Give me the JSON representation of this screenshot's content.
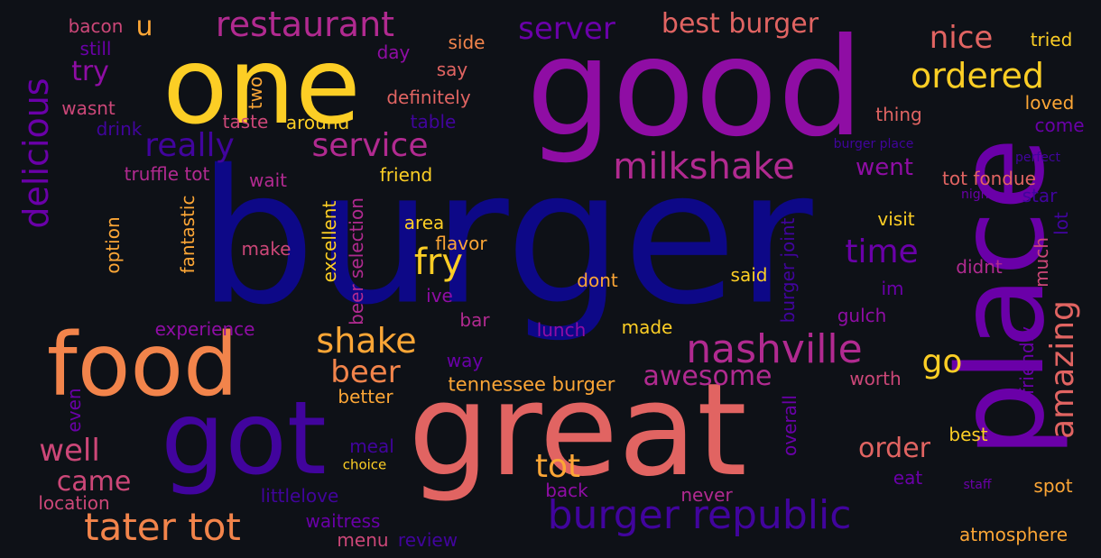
{
  "colors": {
    "background": "#0e1117",
    "navy": "#0d0887",
    "indigo": "#41049d",
    "violet": "#6a00a8",
    "purple": "#8f0da4",
    "magenta": "#b12a90",
    "pink": "#cc4778",
    "salmon": "#e16462",
    "orange": "#f2844b",
    "amber": "#fca636",
    "yellow": "#fcce25"
  },
  "words": [
    {
      "text": "burger",
      "color": "navy"
    },
    {
      "text": "good",
      "color": "purple"
    },
    {
      "text": "place",
      "color": "violet"
    },
    {
      "text": "great",
      "color": "salmon"
    },
    {
      "text": "one",
      "color": "yellow"
    },
    {
      "text": "food",
      "color": "orange"
    },
    {
      "text": "got",
      "color": "indigo"
    },
    {
      "text": "burger republic",
      "color": "indigo"
    },
    {
      "text": "nashville",
      "color": "magenta"
    },
    {
      "text": "tater tot",
      "color": "orange"
    },
    {
      "text": "milkshake",
      "color": "magenta"
    },
    {
      "text": "delicious",
      "color": "violet"
    },
    {
      "text": "restaurant",
      "color": "magenta"
    },
    {
      "text": "service",
      "color": "magenta"
    },
    {
      "text": "really",
      "color": "indigo"
    },
    {
      "text": "amazing",
      "color": "salmon"
    },
    {
      "text": "ordered",
      "color": "yellow"
    },
    {
      "text": "shake",
      "color": "amber"
    },
    {
      "text": "best burger",
      "color": "salmon"
    },
    {
      "text": "server",
      "color": "violet"
    },
    {
      "text": "nice",
      "color": "salmon"
    },
    {
      "text": "time",
      "color": "violet"
    },
    {
      "text": "awesome",
      "color": "magenta"
    },
    {
      "text": "beer",
      "color": "orange"
    },
    {
      "text": "fry",
      "color": "yellow"
    },
    {
      "text": "go",
      "color": "yellow"
    },
    {
      "text": "well",
      "color": "pink"
    },
    {
      "text": "came",
      "color": "pink"
    },
    {
      "text": "tot",
      "color": "amber"
    },
    {
      "text": "order",
      "color": "salmon"
    },
    {
      "text": "u",
      "color": "amber"
    },
    {
      "text": "try",
      "color": "purple"
    },
    {
      "text": "went",
      "color": "purple"
    },
    {
      "text": "tennessee burger",
      "color": "amber"
    },
    {
      "text": "burger joint",
      "color": "indigo"
    },
    {
      "text": "friendly",
      "color": "violet"
    },
    {
      "text": "much",
      "color": "pink"
    },
    {
      "text": "lot",
      "color": "indigo"
    },
    {
      "text": "excellent",
      "color": "yellow"
    },
    {
      "text": "beer selection",
      "color": "magenta"
    },
    {
      "text": "fantastic",
      "color": "amber"
    },
    {
      "text": "option",
      "color": "amber"
    },
    {
      "text": "overall",
      "color": "violet"
    },
    {
      "text": "experience",
      "color": "purple"
    },
    {
      "text": "worth",
      "color": "pink"
    },
    {
      "text": "tot fondue",
      "color": "salmon"
    },
    {
      "text": "truffle tot",
      "color": "magenta"
    },
    {
      "text": "definitely",
      "color": "salmon"
    },
    {
      "text": "visit",
      "color": "yellow"
    },
    {
      "text": "flavor",
      "color": "amber"
    },
    {
      "text": "waitress",
      "color": "violet"
    },
    {
      "text": "atmosphere",
      "color": "amber"
    },
    {
      "text": "better",
      "color": "amber"
    },
    {
      "text": "lunch",
      "color": "purple"
    },
    {
      "text": "made",
      "color": "yellow"
    },
    {
      "text": "spot",
      "color": "amber"
    },
    {
      "text": "best",
      "color": "yellow"
    },
    {
      "text": "dont",
      "color": "amber"
    },
    {
      "text": "said",
      "color": "yellow"
    },
    {
      "text": "gulch",
      "color": "purple"
    },
    {
      "text": "littlelove",
      "color": "indigo"
    },
    {
      "text": "location",
      "color": "pink"
    },
    {
      "text": "thing",
      "color": "salmon"
    },
    {
      "text": "area",
      "color": "yellow"
    },
    {
      "text": "make",
      "color": "pink"
    },
    {
      "text": "friend",
      "color": "yellow"
    },
    {
      "text": "wait",
      "color": "magenta"
    },
    {
      "text": "star",
      "color": "indigo"
    },
    {
      "text": "didnt",
      "color": "magenta"
    },
    {
      "text": "never",
      "color": "magenta"
    },
    {
      "text": "back",
      "color": "purple"
    },
    {
      "text": "meal",
      "color": "indigo"
    },
    {
      "text": "menu",
      "color": "pink"
    },
    {
      "text": "review",
      "color": "indigo"
    },
    {
      "text": "way",
      "color": "violet"
    },
    {
      "text": "bar",
      "color": "magenta"
    },
    {
      "text": "ive",
      "color": "purple"
    },
    {
      "text": "side",
      "color": "orange"
    },
    {
      "text": "say",
      "color": "salmon"
    },
    {
      "text": "day",
      "color": "purple"
    },
    {
      "text": "tried",
      "color": "yellow"
    },
    {
      "text": "loved",
      "color": "amber"
    },
    {
      "text": "come",
      "color": "violet"
    },
    {
      "text": "bacon",
      "color": "pink"
    },
    {
      "text": "still",
      "color": "violet"
    },
    {
      "text": "wasnt",
      "color": "pink"
    },
    {
      "text": "drink",
      "color": "indigo"
    },
    {
      "text": "taste",
      "color": "pink"
    },
    {
      "text": "around",
      "color": "yellow"
    },
    {
      "text": "table",
      "color": "indigo"
    },
    {
      "text": "two",
      "color": "amber"
    },
    {
      "text": "even",
      "color": "violet"
    },
    {
      "text": "eat",
      "color": "violet"
    },
    {
      "text": "im",
      "color": "violet"
    },
    {
      "text": "choice",
      "color": "yellow"
    },
    {
      "text": "burger place",
      "color": "indigo"
    },
    {
      "text": "perfect",
      "color": "indigo"
    },
    {
      "text": "night",
      "color": "violet"
    },
    {
      "text": "staff",
      "color": "violet"
    }
  ]
}
